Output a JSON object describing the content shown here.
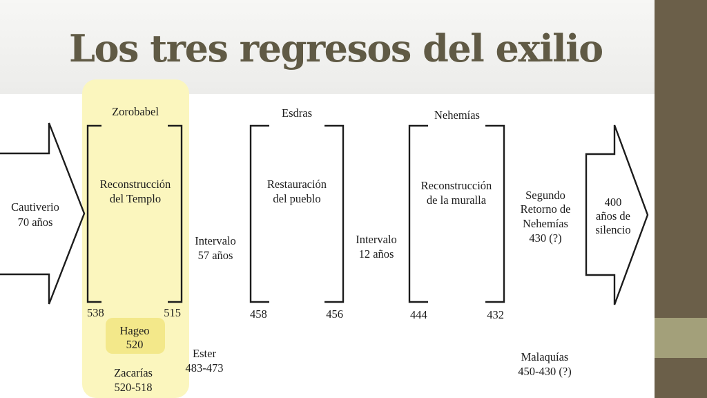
{
  "slide": {
    "title": "Los tres regresos del exilio",
    "colors": {
      "title": "#605a45",
      "side_panel": "#6b5f49",
      "side_accent": "#a3a07a",
      "highlight": "#fbf6be"
    }
  },
  "diagram": {
    "captivity": {
      "line1": "Cautiverio",
      "line2": "70  años"
    },
    "silence": {
      "line1": "400",
      "line2": "años de",
      "line3": "silencio"
    },
    "return1": {
      "leader": "Zorobabel",
      "task_line1": "Reconstrucción",
      "task_line2": "del   Templo",
      "start": "538",
      "end": "515",
      "prophet1_line1": "Hageo",
      "prophet1_line2": "520",
      "prophet2_line1": "Zacarías",
      "prophet2_line2": "520-518"
    },
    "interval1": {
      "line1": "Intervalo",
      "line2": "57 años"
    },
    "ester": {
      "line1": "Ester",
      "line2": "483-473"
    },
    "return2": {
      "leader": "Esdras",
      "task_line1": "Restauración",
      "task_line2": "del  pueblo",
      "start": "458",
      "end": "456"
    },
    "interval2": {
      "line1": "Intervalo",
      "line2": "12 años"
    },
    "return3": {
      "leader": "Nehemías",
      "task_line1": "Reconstrucción",
      "task_line2": "de  la  muralla",
      "start": "444",
      "end": "432"
    },
    "second_return": {
      "line1": "Segundo",
      "line2": "Retorno de",
      "line3": "Nehemías",
      "line4": "430 (?)"
    },
    "malaquias": {
      "line1": "Malaquías",
      "line2": "450-430 (?)"
    }
  }
}
